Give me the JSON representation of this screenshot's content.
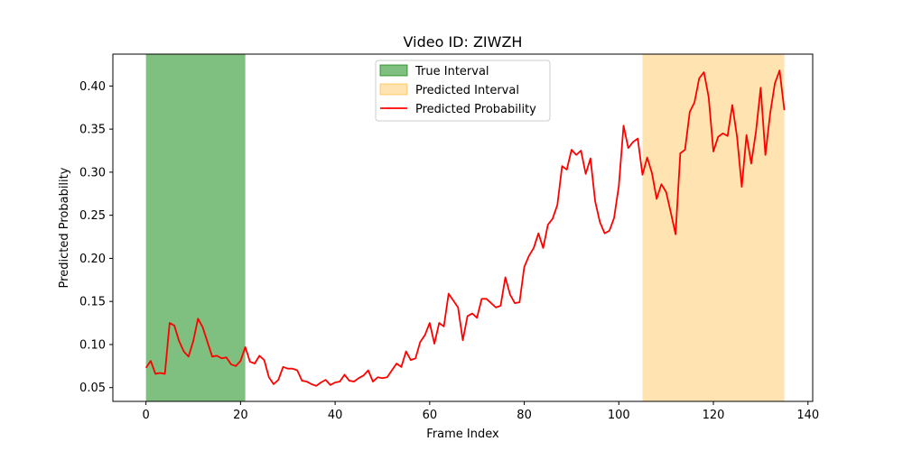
{
  "chart_data": {
    "type": "line",
    "title": "Video ID: ZIWZH",
    "xlabel": "Frame Index",
    "ylabel": "Predicted Probability",
    "xlim": [
      -7,
      141
    ],
    "ylim": [
      0.034,
      0.437
    ],
    "xticks": [
      0,
      20,
      40,
      60,
      80,
      100,
      120,
      140
    ],
    "yticks": [
      0.05,
      0.1,
      0.15,
      0.2,
      0.25,
      0.3,
      0.35,
      0.4
    ],
    "grid": false,
    "legend_position": "top-center",
    "intervals": [
      {
        "name": "True Interval",
        "start": 0,
        "end": 21,
        "color": "#008000",
        "opacity": 0.5
      },
      {
        "name": "Predicted Interval",
        "start": 105,
        "end": 135,
        "color": "#FFA500",
        "opacity": 0.3
      }
    ],
    "series": [
      {
        "name": "Predicted Probability",
        "color": "#ff0000",
        "x_start": 0,
        "values": [
          0.073,
          0.081,
          0.066,
          0.067,
          0.066,
          0.125,
          0.122,
          0.104,
          0.092,
          0.086,
          0.104,
          0.13,
          0.12,
          0.103,
          0.086,
          0.087,
          0.084,
          0.085,
          0.077,
          0.075,
          0.081,
          0.097,
          0.08,
          0.078,
          0.087,
          0.082,
          0.062,
          0.054,
          0.059,
          0.074,
          0.072,
          0.072,
          0.07,
          0.058,
          0.057,
          0.054,
          0.052,
          0.056,
          0.059,
          0.053,
          0.056,
          0.057,
          0.065,
          0.058,
          0.057,
          0.061,
          0.064,
          0.07,
          0.057,
          0.062,
          0.061,
          0.062,
          0.07,
          0.078,
          0.074,
          0.092,
          0.082,
          0.084,
          0.103,
          0.111,
          0.125,
          0.101,
          0.125,
          0.121,
          0.159,
          0.151,
          0.143,
          0.105,
          0.133,
          0.136,
          0.131,
          0.153,
          0.153,
          0.148,
          0.143,
          0.145,
          0.178,
          0.158,
          0.148,
          0.149,
          0.19,
          0.203,
          0.212,
          0.229,
          0.212,
          0.239,
          0.246,
          0.262,
          0.307,
          0.303,
          0.326,
          0.32,
          0.325,
          0.298,
          0.316,
          0.266,
          0.242,
          0.229,
          0.232,
          0.247,
          0.284,
          0.354,
          0.328,
          0.335,
          0.339,
          0.297,
          0.317,
          0.299,
          0.269,
          0.286,
          0.277,
          0.253,
          0.228,
          0.322,
          0.326,
          0.37,
          0.381,
          0.409,
          0.416,
          0.387,
          0.324,
          0.341,
          0.345,
          0.342,
          0.378,
          0.341,
          0.283,
          0.343,
          0.31,
          0.347,
          0.398,
          0.32,
          0.368,
          0.403,
          0.418,
          0.372
        ]
      }
    ]
  }
}
